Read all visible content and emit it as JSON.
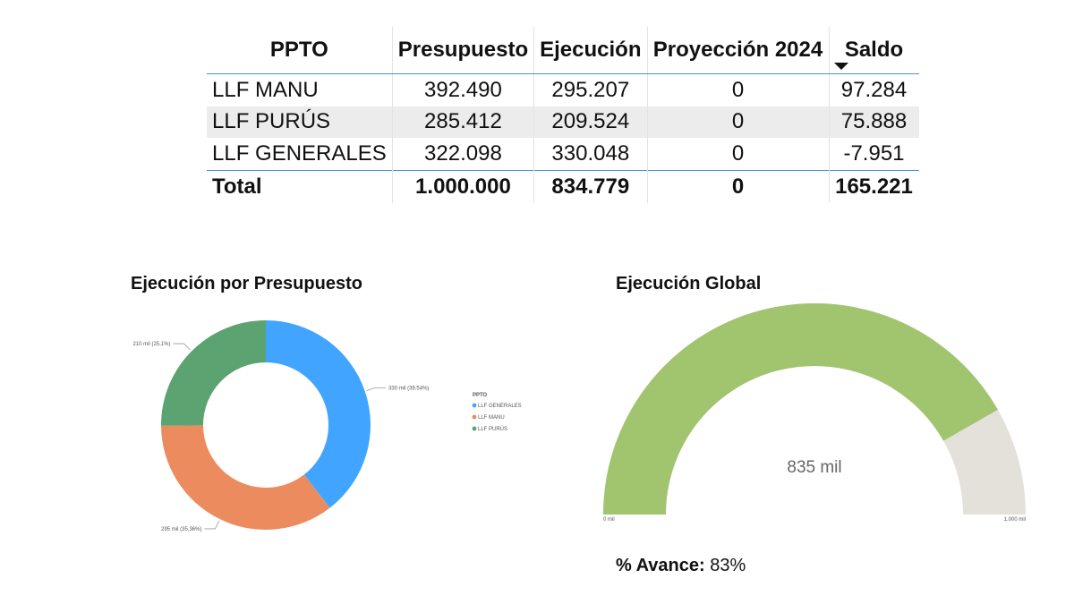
{
  "table": {
    "headers": [
      "PPTO",
      "Presupuesto",
      "Ejecución",
      "Proyección 2024",
      "Saldo"
    ],
    "rows": [
      [
        "LLF MANU",
        "392.490",
        "295.207",
        "0",
        "97.284"
      ],
      [
        "LLF PURÚS",
        "285.412",
        "209.524",
        "0",
        "75.888"
      ],
      [
        "LLF GENERALES",
        "322.098",
        "330.048",
        "0",
        "-7.951"
      ]
    ],
    "total": [
      "Total",
      "1.000.000",
      "834.779",
      "0",
      "165.221"
    ]
  },
  "donut": {
    "title": "Ejecución por Presupuesto"
  },
  "gauge": {
    "title": "Ejecución Global"
  },
  "avance": {
    "label": "% Avance:",
    "value": "83%"
  },
  "chart_data": [
    {
      "type": "pie",
      "variant": "donut",
      "title": "Ejecución por Presupuesto",
      "legend_title": "PPTO",
      "legend_position": "right",
      "categories": [
        "LLF GENERALES",
        "LLF MANU",
        "LLF PURÚS"
      ],
      "values": [
        330048,
        295207,
        209524
      ],
      "data_labels": [
        "330 mil (39,54%)",
        "295 mil (35,36%)",
        "210 mil (25,1%)"
      ],
      "colors": [
        "#41a5ff",
        "#ec8b5e",
        "#5ba371"
      ]
    },
    {
      "type": "gauge",
      "title": "Ejecución Global",
      "value": 834779,
      "value_label": "835 mil",
      "min": 0,
      "max": 1000000,
      "min_label": "0 mil",
      "max_label": "1.000 mil",
      "fill_color": "#a1c46f",
      "track_color": "#e4e0da"
    }
  ]
}
